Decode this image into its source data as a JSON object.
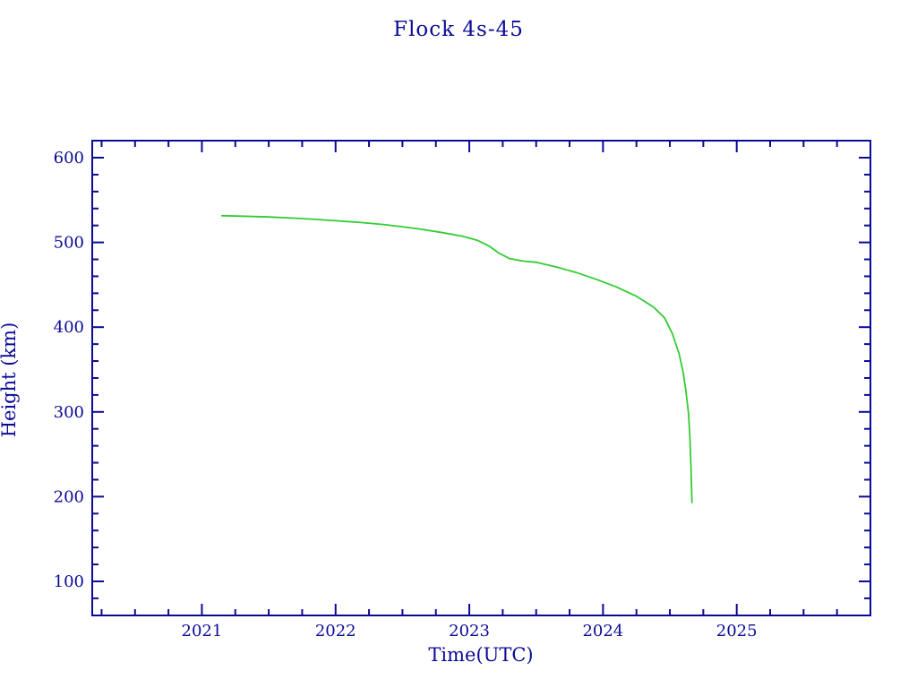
{
  "chart_data": {
    "type": "line",
    "title": "Flock 4s-45",
    "xlabel": "Time(UTC)",
    "ylabel": "Height (km)",
    "xlim": [
      2020.18,
      2026.0
    ],
    "ylim": [
      59.8,
      620.1
    ],
    "xticks": [
      2021,
      2022,
      2023,
      2024,
      2025
    ],
    "x_minor_step": 0.25,
    "yticks": [
      100,
      200,
      300,
      400,
      500,
      600
    ],
    "y_minor_step": 20,
    "grid": false,
    "legend": "none",
    "tick_direction": "in",
    "axis_color": "#0a0a96",
    "text_color": "#0a0a96",
    "line_color": "#33cc33",
    "background": "#ffffff",
    "series": [
      {
        "name": "Flock 4s-45",
        "x": [
          2021.15,
          2021.3,
          2021.5,
          2021.7,
          2021.85,
          2022.0,
          2022.17,
          2022.35,
          2022.5,
          2022.65,
          2022.8,
          2022.95,
          2023.06,
          2023.15,
          2023.22,
          2023.3,
          2023.4,
          2023.5,
          2023.65,
          2023.8,
          2023.95,
          2024.1,
          2024.25,
          2024.38,
          2024.46,
          2024.52,
          2024.57,
          2024.6,
          2024.62,
          2024.64,
          2024.65,
          2024.658,
          2024.665
        ],
        "y": [
          531.5,
          531.0,
          530.0,
          528.6,
          527.2,
          525.6,
          523.8,
          521.3,
          518.5,
          515.3,
          511.5,
          507.3,
          502.5,
          495.5,
          487.5,
          481.0,
          478.0,
          476.5,
          471.0,
          464.5,
          456.5,
          447.5,
          436.5,
          423.5,
          411.0,
          392.0,
          368.0,
          346.0,
          325.0,
          298.0,
          270.0,
          235.0,
          193.0
        ]
      }
    ]
  }
}
